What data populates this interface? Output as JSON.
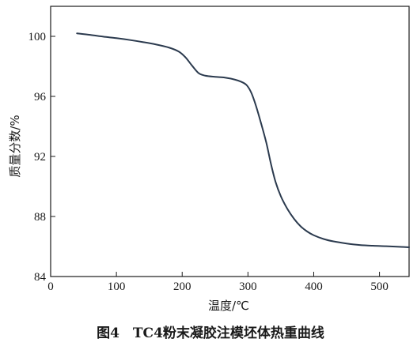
{
  "chart_data": {
    "type": "line",
    "caption": "图4　TC4粉末凝胶注模坯体热重曲线",
    "xlabel": "温度/℃",
    "ylabel": "质量分数/%",
    "xlim": [
      0,
      545
    ],
    "ylim": [
      84,
      102
    ],
    "x_ticks": [
      0,
      100,
      200,
      300,
      400,
      500
    ],
    "y_ticks": [
      84,
      88,
      92,
      96,
      100
    ],
    "grid": false,
    "series": [
      {
        "color": "#2b3a4e",
        "x": [
          40,
          60,
          80,
          100,
          120,
          140,
          160,
          180,
          195,
          205,
          215,
          225,
          235,
          250,
          265,
          280,
          290,
          298,
          305,
          312,
          320,
          328,
          335,
          342,
          350,
          360,
          370,
          380,
          390,
          400,
          415,
          430,
          450,
          470,
          490,
          510,
          530,
          545
        ],
        "y": [
          100.2,
          100.1,
          99.98,
          99.88,
          99.76,
          99.62,
          99.46,
          99.25,
          98.98,
          98.6,
          98.05,
          97.55,
          97.38,
          97.3,
          97.25,
          97.12,
          96.97,
          96.75,
          96.25,
          95.4,
          94.2,
          92.9,
          91.5,
          90.3,
          89.35,
          88.5,
          87.85,
          87.35,
          87.0,
          86.75,
          86.5,
          86.34,
          86.2,
          86.1,
          86.05,
          86.02,
          85.98,
          85.95
        ]
      }
    ]
  }
}
